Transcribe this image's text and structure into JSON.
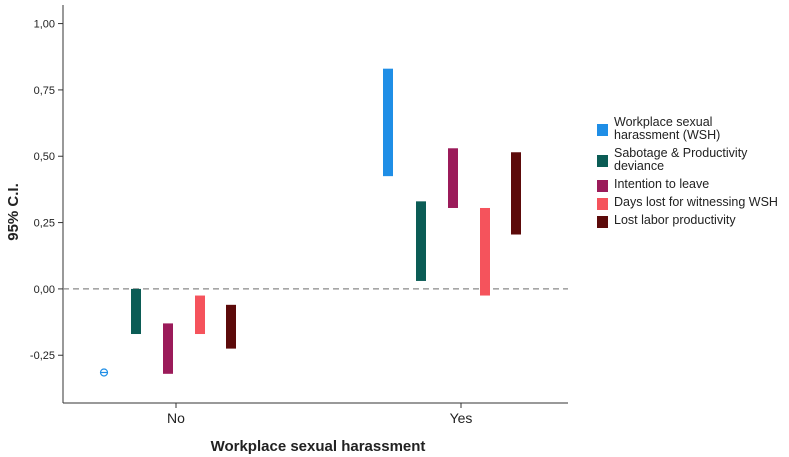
{
  "chart_data": {
    "type": "bar",
    "subtype": "error-bar / confidence-interval",
    "xlabel": "Workplace sexual harassment",
    "ylabel": "95% C.I.",
    "categories": [
      "No",
      "Yes"
    ],
    "ylim": [
      -0.43,
      1.07
    ],
    "yticks": [
      -0.25,
      0.0,
      0.25,
      0.5,
      0.75,
      1.0
    ],
    "ytick_labels": [
      "-0,25",
      "0,00",
      "0,25",
      "0,50",
      "0,75",
      "1,00"
    ],
    "reference_line": {
      "y": 0.0,
      "style": "dashed"
    },
    "grid": false,
    "legend_position": "right",
    "series": [
      {
        "name": "Workplace sexual harassment (WSH)",
        "legend_lines": [
          "Workplace sexual",
          "harassment (WSH)"
        ],
        "color": "#1f8ee6",
        "intervals": [
          [
            -0.315,
            -0.315
          ],
          [
            0.425,
            0.83
          ]
        ]
      },
      {
        "name": "Sabotage & Productivity deviance",
        "legend_lines": [
          "Sabotage & Productivity",
          "deviance"
        ],
        "color": "#0b5c55",
        "intervals": [
          [
            -0.17,
            0.0
          ],
          [
            0.03,
            0.33
          ]
        ]
      },
      {
        "name": "Intention to leave",
        "legend_lines": [
          "Intention to leave"
        ],
        "color": "#9b1b5a",
        "intervals": [
          [
            -0.32,
            -0.13
          ],
          [
            0.305,
            0.53
          ]
        ]
      },
      {
        "name": "Days lost for witnessing WSH",
        "legend_lines": [
          "Days lost for witnessing WSH"
        ],
        "color": "#f5535c",
        "intervals": [
          [
            -0.17,
            -0.025
          ],
          [
            -0.025,
            0.305
          ]
        ]
      },
      {
        "name": "Lost labor productivity",
        "legend_lines": [
          "Lost labor productivity"
        ],
        "color": "#5c0a0a",
        "intervals": [
          [
            -0.225,
            -0.06
          ],
          [
            0.205,
            0.515
          ]
        ]
      }
    ]
  }
}
